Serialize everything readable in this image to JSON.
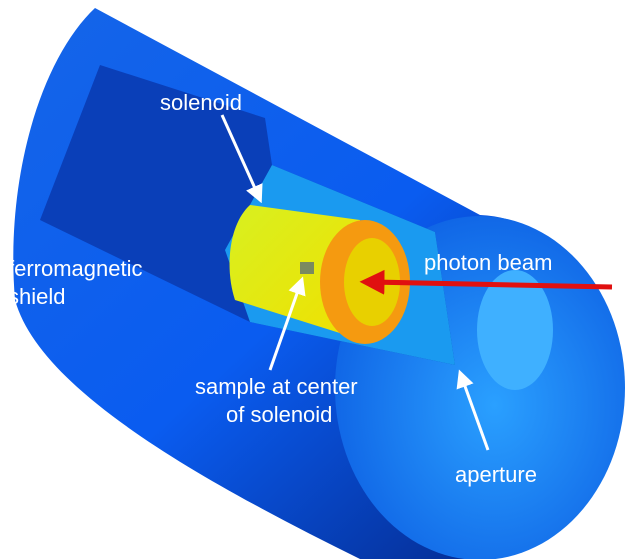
{
  "labels": [
    {
      "lines": [
        "solenoid"
      ]
    },
    {
      "lines": [
        "ferromagnetic",
        "shield"
      ]
    },
    {
      "lines": [
        "photon beam"
      ]
    },
    {
      "lines": [
        "sample at center",
        "of solenoid"
      ]
    },
    {
      "lines": [
        "aperture"
      ]
    }
  ]
}
